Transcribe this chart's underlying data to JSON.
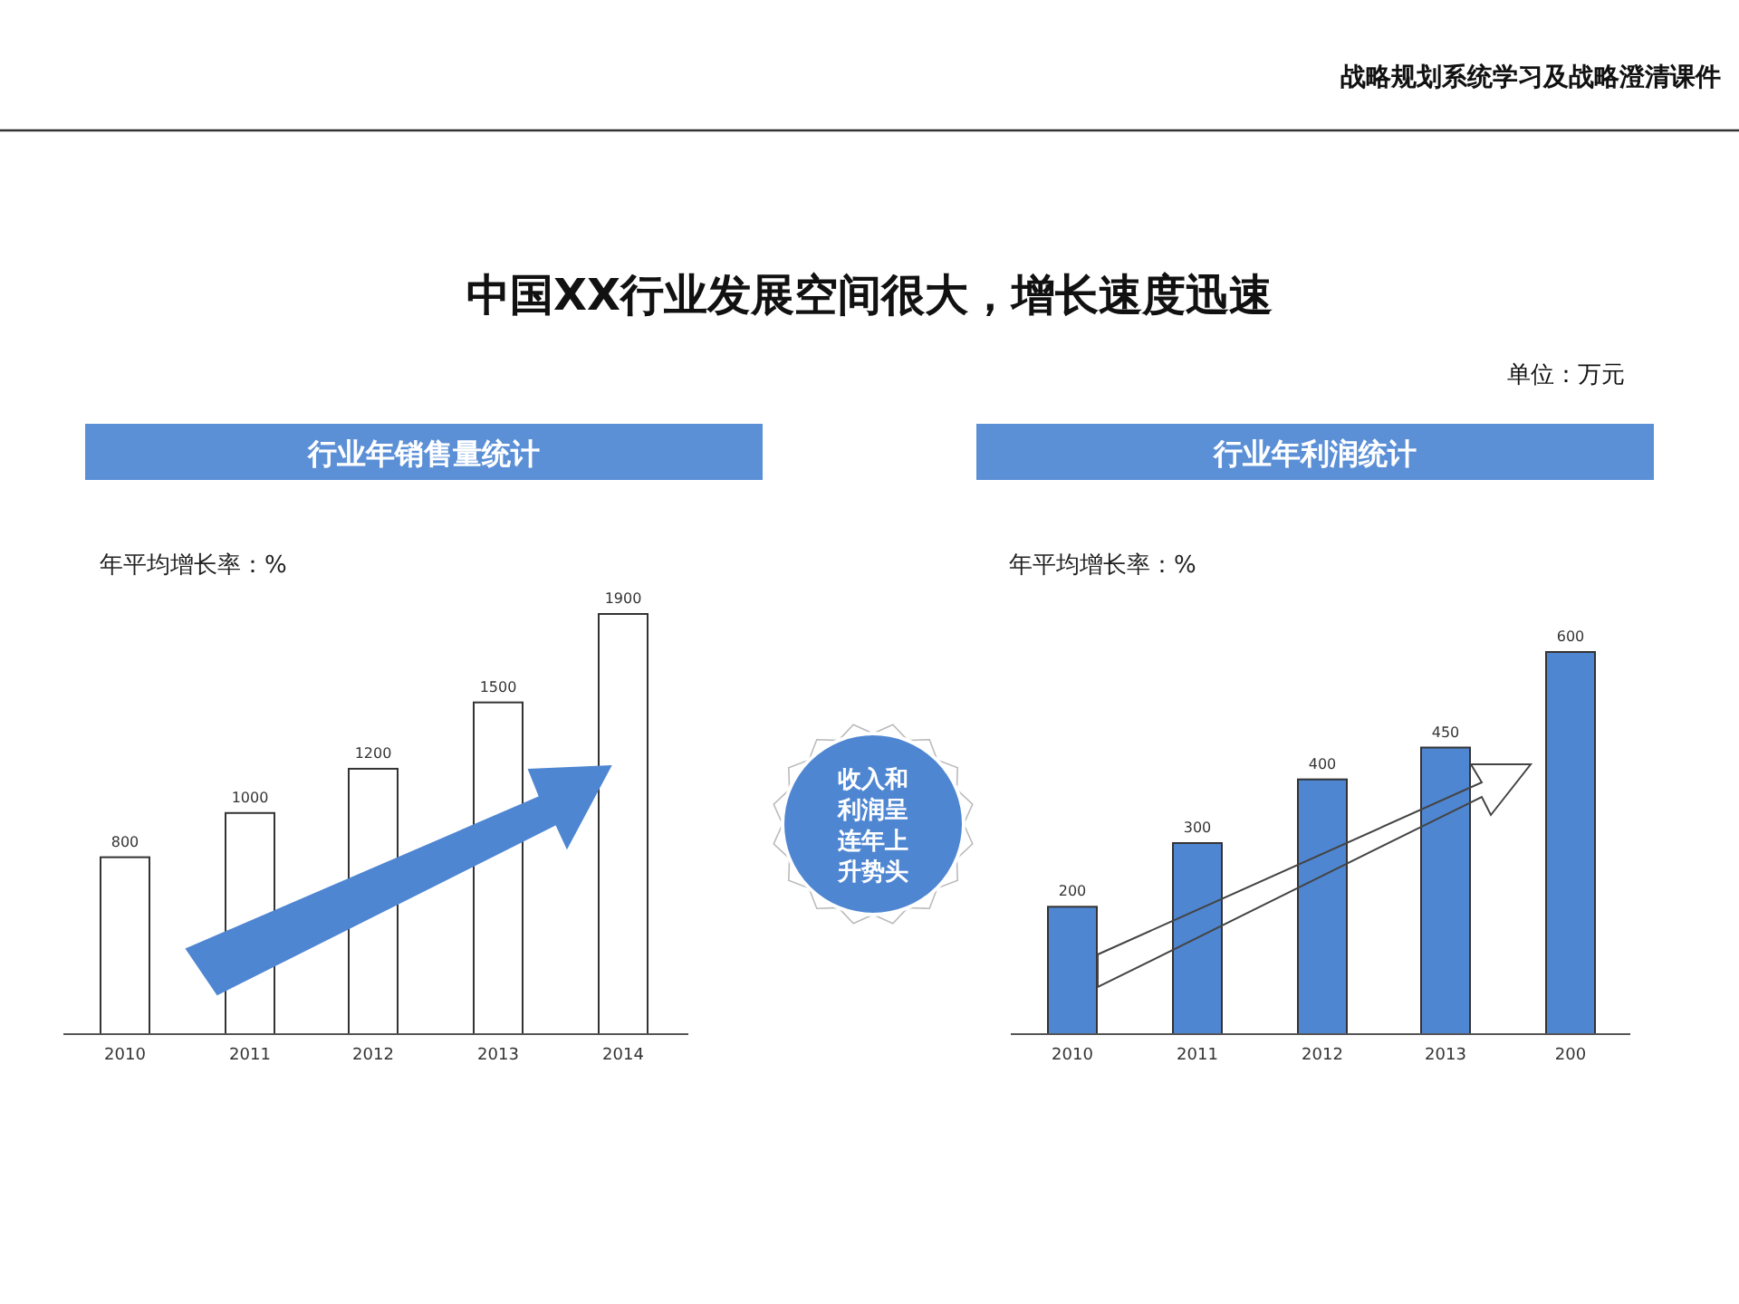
{
  "chart_data": [
    {
      "type": "bar",
      "title": "行业年销售量统计",
      "categories": [
        "2010",
        "2011",
        "2012",
        "2013",
        "2014"
      ],
      "values": [
        800,
        1000,
        1200,
        1500,
        1900
      ],
      "color": "#ffffff",
      "data_labels": true,
      "annotations": [
        "战略规划系统学习及战略澄清课件",
        "中国XX行业发展空间很大，增长速度迅速",
        "单位：万元",
        "年平均增长率：%",
        "收入和利润呈连年上升势头"
      ]
    },
    {
      "type": "bar",
      "title": "行业年利润统计",
      "categories": [
        "2010",
        "2011",
        "2012",
        "2013",
        "200"
      ],
      "values": [
        200,
        300,
        400,
        450,
        600
      ],
      "color": "#4f86d2",
      "data_labels": true,
      "annotations": [
        "年平均增长率：%"
      ]
    }
  ]
}
